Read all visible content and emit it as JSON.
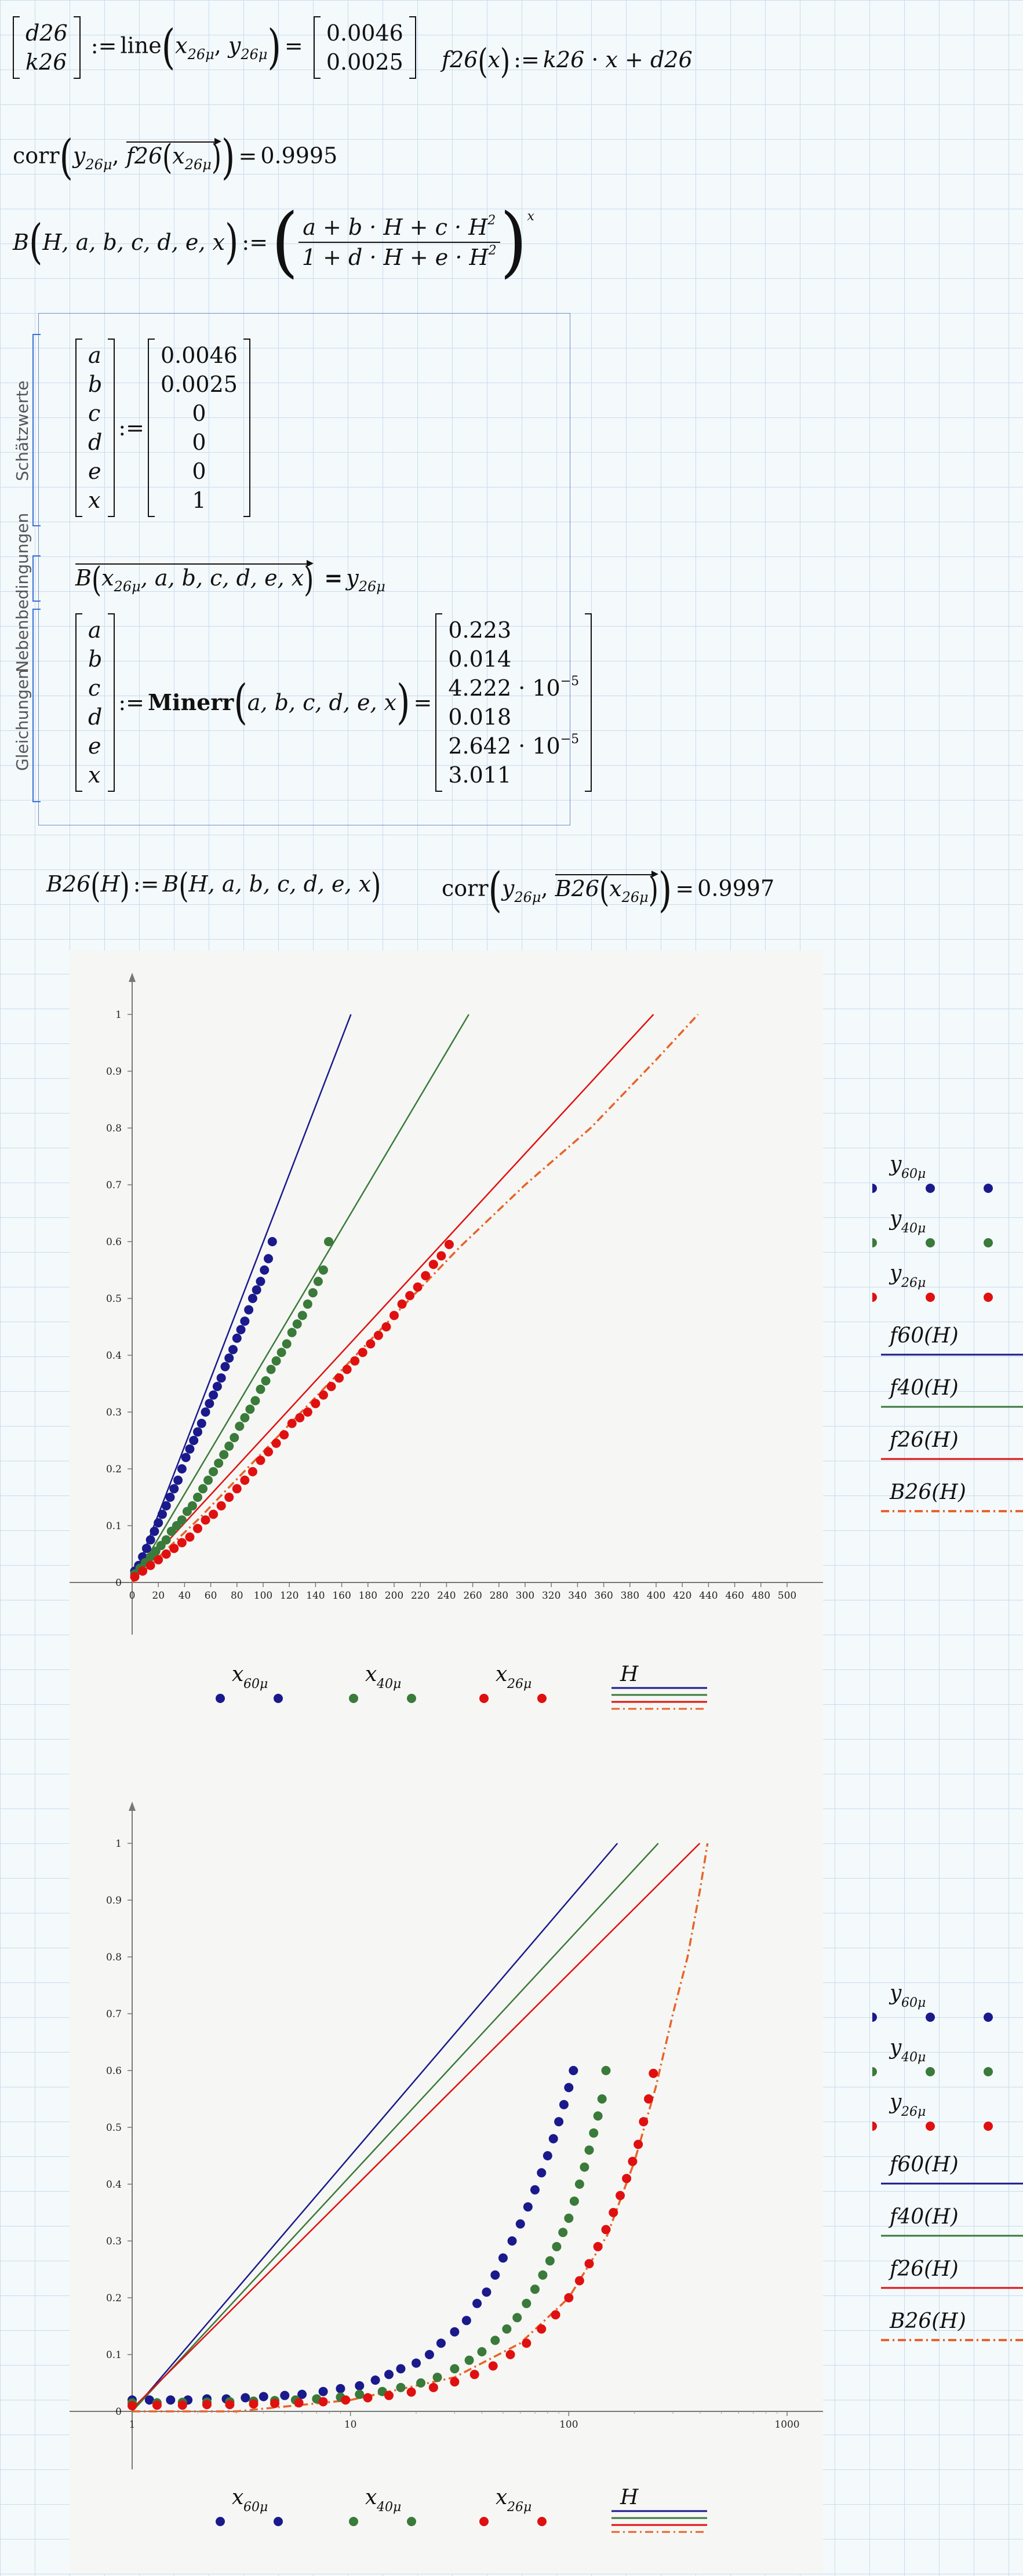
{
  "line_eq": {
    "lhs_top": "d26",
    "lhs_bottom": "k26",
    "func": "line",
    "arg1": "x",
    "arg1_sub": "26μ",
    "arg2": "y",
    "arg2_sub": "26μ",
    "res_top": "0.0046",
    "res_bottom": "0.0025"
  },
  "f26_def": {
    "name": "f26",
    "var": "x",
    "rhs_k": "k26",
    "rhs_d": "d26"
  },
  "corr1": {
    "func": "corr",
    "y": "y",
    "y_sub": "26μ",
    "f": "f26",
    "x": "x",
    "x_sub": "26μ",
    "value": "0.9995"
  },
  "b_def": {
    "name": "B",
    "args": "H, a, b, c, d, e, x",
    "num": "a + b · H + c · H",
    "den": "1 + d · H + e · H",
    "exp": "x",
    "sq": "2"
  },
  "solve_block": {
    "label_guess": "Schätzwerte",
    "label_constraints": "Nebenbedingungen",
    "label_equations": "Gleichungen",
    "vars": [
      "a",
      "b",
      "c",
      "d",
      "e",
      "x"
    ],
    "guess": [
      "0.0046",
      "0.0025",
      "0",
      "0",
      "0",
      "1"
    ],
    "constraint_lhs": "B",
    "constraint_args": "x",
    "constraint_args_sub": "26μ",
    "constraint_rest": ", a, b, c, d, e, x",
    "constraint_rhs": "y",
    "constraint_rhs_sub": "26μ",
    "minerr": "Minerr",
    "minerr_args": "a, b, c, d, e, x",
    "result": [
      "0.223",
      "0.014",
      "4.222 · 10",
      "0.018",
      "2.642 · 10",
      "3.011"
    ],
    "result_exp": [
      "",
      "",
      "−5",
      "",
      "−5",
      ""
    ]
  },
  "b26_def": {
    "name": "B26",
    "var": "H",
    "rhs": "B",
    "rhs_args": "H, a, b, c, d, e, x"
  },
  "corr2": {
    "func": "corr",
    "y": "y",
    "y_sub": "26μ",
    "f": "B26",
    "x": "x",
    "x_sub": "26μ",
    "value": "0.9997"
  },
  "legend": {
    "y_series": [
      {
        "name": "y",
        "sub": "60μ",
        "color": "#1a1a8c"
      },
      {
        "name": "y",
        "sub": "40μ",
        "color": "#3a7a3a"
      },
      {
        "name": "y",
        "sub": "26μ",
        "color": "#e01010"
      }
    ],
    "f_series": [
      {
        "name": "f60(H)",
        "color": "#1a1a8c",
        "style": "solid"
      },
      {
        "name": "f40(H)",
        "color": "#3a7a3a",
        "style": "solid"
      },
      {
        "name": "f26(H)",
        "color": "#e01010",
        "style": "solid"
      },
      {
        "name": "B26(H)",
        "color": "#e8632a",
        "style": "dashdot"
      }
    ],
    "x_series": [
      {
        "name": "x",
        "sub": "60μ",
        "color": "#1a1a8c"
      },
      {
        "name": "x",
        "sub": "40μ",
        "color": "#3a7a3a"
      },
      {
        "name": "x",
        "sub": "26μ",
        "color": "#e01010"
      }
    ],
    "x_H": "H"
  },
  "chart_data": [
    {
      "type": "scatter",
      "scale": "linear",
      "xlim": [
        0,
        500
      ],
      "ylim": [
        0,
        1
      ],
      "xticks": [
        "0",
        "20",
        "40",
        "60",
        "80",
        "100",
        "120",
        "140",
        "160",
        "180",
        "200",
        "220",
        "240",
        "260",
        "280",
        "300",
        "320",
        "340",
        "360",
        "380",
        "400",
        "420",
        "440",
        "460",
        "480",
        "500"
      ],
      "yticks": [
        "0",
        "0.1",
        "0.2",
        "0.3",
        "0.4",
        "0.5",
        "0.6",
        "0.7",
        "0.8",
        "0.9",
        "1"
      ],
      "series": [
        {
          "name": "y60μ",
          "x": [
            2,
            5,
            8,
            11,
            14,
            17,
            20,
            23,
            26,
            29,
            32,
            35,
            38,
            41,
            44,
            47,
            50,
            53,
            56,
            59,
            62,
            65,
            68,
            71,
            74,
            77,
            80,
            83,
            86,
            89,
            92,
            95,
            98,
            101,
            104,
            107
          ],
          "y": [
            0.02,
            0.03,
            0.045,
            0.06,
            0.075,
            0.09,
            0.105,
            0.12,
            0.135,
            0.15,
            0.165,
            0.18,
            0.2,
            0.22,
            0.235,
            0.25,
            0.265,
            0.28,
            0.3,
            0.315,
            0.33,
            0.345,
            0.36,
            0.38,
            0.395,
            0.41,
            0.43,
            0.445,
            0.46,
            0.48,
            0.5,
            0.515,
            0.53,
            0.55,
            0.57,
            0.6
          ]
        },
        {
          "name": "y40μ",
          "x": [
            2,
            6,
            10,
            14,
            18,
            22,
            26,
            30,
            34,
            38,
            42,
            46,
            50,
            54,
            58,
            62,
            66,
            70,
            74,
            78,
            82,
            86,
            90,
            94,
            98,
            102,
            106,
            110,
            114,
            118,
            122,
            126,
            130,
            134,
            138,
            142,
            146,
            150
          ],
          "y": [
            0.015,
            0.025,
            0.035,
            0.045,
            0.055,
            0.065,
            0.075,
            0.09,
            0.1,
            0.11,
            0.125,
            0.135,
            0.15,
            0.165,
            0.18,
            0.195,
            0.21,
            0.225,
            0.24,
            0.255,
            0.275,
            0.29,
            0.305,
            0.32,
            0.34,
            0.355,
            0.375,
            0.39,
            0.405,
            0.42,
            0.44,
            0.455,
            0.47,
            0.49,
            0.51,
            0.53,
            0.55,
            0.6
          ]
        },
        {
          "name": "y26μ",
          "x": [
            2,
            8,
            14,
            20,
            26,
            32,
            38,
            44,
            50,
            56,
            62,
            68,
            74,
            80,
            86,
            92,
            98,
            104,
            110,
            116,
            122,
            128,
            134,
            140,
            146,
            152,
            158,
            164,
            170,
            176,
            182,
            188,
            194,
            200,
            206,
            212,
            218,
            224,
            230,
            236,
            242
          ],
          "y": [
            0.01,
            0.02,
            0.03,
            0.04,
            0.05,
            0.06,
            0.07,
            0.08,
            0.095,
            0.11,
            0.12,
            0.135,
            0.15,
            0.165,
            0.18,
            0.195,
            0.215,
            0.23,
            0.245,
            0.26,
            0.28,
            0.29,
            0.3,
            0.315,
            0.33,
            0.345,
            0.36,
            0.375,
            0.39,
            0.405,
            0.42,
            0.435,
            0.45,
            0.47,
            0.49,
            0.505,
            0.52,
            0.54,
            0.56,
            0.575,
            0.595
          ]
        }
      ],
      "lines": [
        {
          "name": "f60(H)",
          "x": [
            0,
            167
          ],
          "y": [
            0.0,
            1.0
          ]
        },
        {
          "name": "f40(H)",
          "x": [
            0,
            257
          ],
          "y": [
            0.0,
            1.0
          ]
        },
        {
          "name": "f26(H)",
          "x": [
            0,
            398
          ],
          "y": [
            0.0046,
            1.0
          ]
        },
        {
          "name": "B26(H)",
          "x": [
            0,
            50,
            100,
            150,
            200,
            250,
            300,
            350,
            400,
            432
          ],
          "y": [
            0.0,
            0.11,
            0.23,
            0.35,
            0.47,
            0.59,
            0.7,
            0.8,
            0.92,
            1.0
          ]
        }
      ]
    },
    {
      "type": "scatter",
      "scale": "log-x",
      "xlim": [
        1,
        1000
      ],
      "ylim": [
        0,
        1
      ],
      "xticks": [
        "1",
        "10",
        "100",
        "1000"
      ],
      "yticks": [
        "0",
        "0.1",
        "0.2",
        "0.3",
        "0.4",
        "0.5",
        "0.6",
        "0.7",
        "0.8",
        "0.9",
        "1"
      ],
      "series": [
        {
          "name": "y60μ",
          "x": [
            1,
            1.2,
            1.5,
            1.8,
            2.2,
            2.7,
            3.3,
            4,
            5,
            6,
            7.5,
            9,
            11,
            13,
            15,
            17,
            20,
            23,
            26,
            30,
            34,
            38,
            42,
            46,
            50,
            55,
            60,
            65,
            70,
            75,
            80,
            85,
            90,
            95,
            100,
            105
          ],
          "y": [
            0.02,
            0.02,
            0.02,
            0.02,
            0.022,
            0.022,
            0.024,
            0.026,
            0.028,
            0.03,
            0.035,
            0.04,
            0.045,
            0.055,
            0.065,
            0.075,
            0.085,
            0.1,
            0.12,
            0.14,
            0.16,
            0.19,
            0.21,
            0.24,
            0.27,
            0.3,
            0.33,
            0.36,
            0.39,
            0.42,
            0.45,
            0.48,
            0.51,
            0.54,
            0.57,
            0.6
          ]
        },
        {
          "name": "y40μ",
          "x": [
            1,
            1.3,
            1.7,
            2.2,
            2.8,
            3.6,
            4.5,
            5.6,
            7,
            9,
            11,
            14,
            17,
            21,
            25,
            30,
            35,
            40,
            46,
            52,
            58,
            64,
            70,
            76,
            82,
            88,
            94,
            100,
            106,
            112,
            118,
            124,
            130,
            136,
            142,
            148
          ],
          "y": [
            0.015,
            0.015,
            0.016,
            0.016,
            0.017,
            0.018,
            0.019,
            0.02,
            0.022,
            0.025,
            0.03,
            0.035,
            0.042,
            0.05,
            0.06,
            0.075,
            0.09,
            0.105,
            0.125,
            0.145,
            0.165,
            0.19,
            0.215,
            0.24,
            0.265,
            0.29,
            0.315,
            0.34,
            0.37,
            0.4,
            0.43,
            0.46,
            0.49,
            0.52,
            0.55,
            0.6
          ]
        },
        {
          "name": "y26μ",
          "x": [
            1,
            1.3,
            1.7,
            2.2,
            2.8,
            3.6,
            4.5,
            5.8,
            7.5,
            9.5,
            12,
            15,
            19,
            24,
            30,
            37,
            45,
            54,
            64,
            75,
            87,
            100,
            112,
            124,
            136,
            148,
            160,
            172,
            184,
            196,
            208,
            220,
            232,
            244
          ],
          "y": [
            0.01,
            0.011,
            0.011,
            0.012,
            0.012,
            0.013,
            0.014,
            0.015,
            0.017,
            0.02,
            0.024,
            0.028,
            0.034,
            0.042,
            0.052,
            0.065,
            0.08,
            0.1,
            0.12,
            0.145,
            0.17,
            0.2,
            0.23,
            0.26,
            0.29,
            0.32,
            0.35,
            0.38,
            0.41,
            0.44,
            0.47,
            0.51,
            0.55,
            0.595
          ]
        }
      ],
      "lines": [
        {
          "name": "f60(H)",
          "x": [
            1,
            167
          ],
          "y": [
            0.0,
            1.0
          ]
        },
        {
          "name": "f40(H)",
          "x": [
            1,
            257
          ],
          "y": [
            0.0,
            1.0
          ]
        },
        {
          "name": "f26(H)",
          "x": [
            1,
            398
          ],
          "y": [
            0.0046,
            1.0
          ]
        },
        {
          "name": "B26(H)",
          "x": [
            1,
            3,
            10,
            30,
            60,
            100,
            150,
            200,
            250,
            300,
            350,
            400,
            432
          ],
          "y": [
            0.0,
            0.0,
            0.02,
            0.06,
            0.12,
            0.2,
            0.31,
            0.44,
            0.57,
            0.7,
            0.8,
            0.92,
            1.0
          ]
        }
      ]
    }
  ]
}
